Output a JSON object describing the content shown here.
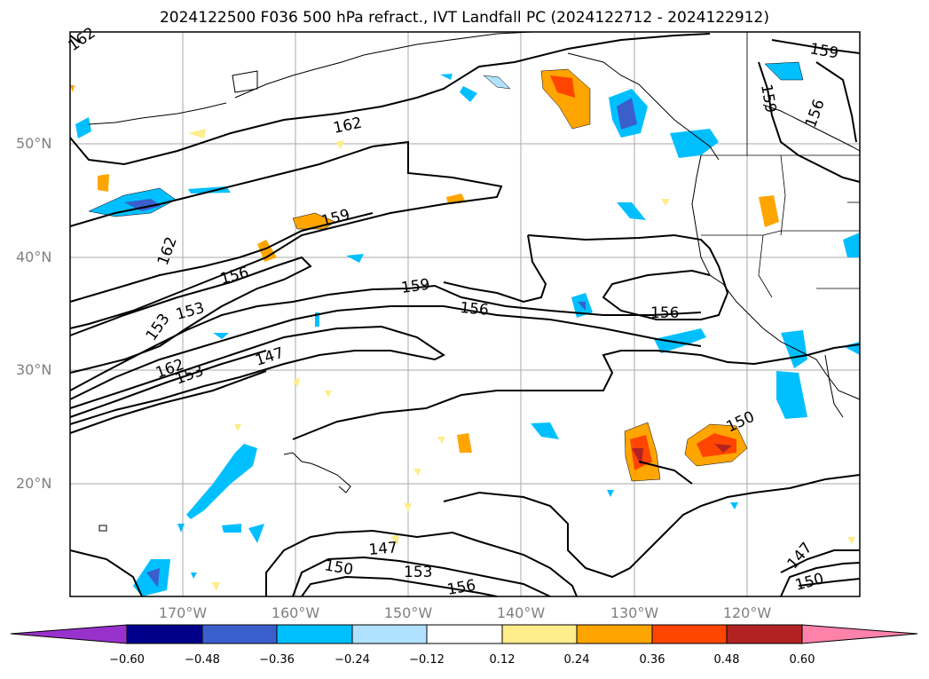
{
  "title": "2024122500 F036 500 hPa refract., IVT Landfall PC (2024122712 - 2024122912)",
  "lat_labels": [
    "50°N",
    "40°N",
    "30°N",
    "20°N"
  ],
  "lon_labels": [
    "170°W",
    "160°W",
    "150°W",
    "140°W",
    "130°W",
    "120°W"
  ],
  "contour_labels": [
    "162",
    "162",
    "159",
    "159",
    "159",
    "159",
    "156",
    "156",
    "156",
    "156",
    "156",
    "153",
    "153",
    "153",
    "153",
    "150",
    "150",
    "150",
    "147",
    "147",
    "147",
    "162",
    "162",
    "156"
  ],
  "colorbar": {
    "ticks": [
      "−0.60",
      "−0.48",
      "−0.36",
      "−0.24",
      "−0.12",
      "0.12",
      "0.24",
      "0.36",
      "0.48",
      "0.60"
    ],
    "colors": [
      "#9932cc",
      "#00008b",
      "#3a5fcd",
      "#00bfff",
      "#b0e2ff",
      "#ffffff",
      "#ffec8b",
      "#ffa500",
      "#ff4500",
      "#b22222",
      "#ff82ab"
    ]
  }
}
